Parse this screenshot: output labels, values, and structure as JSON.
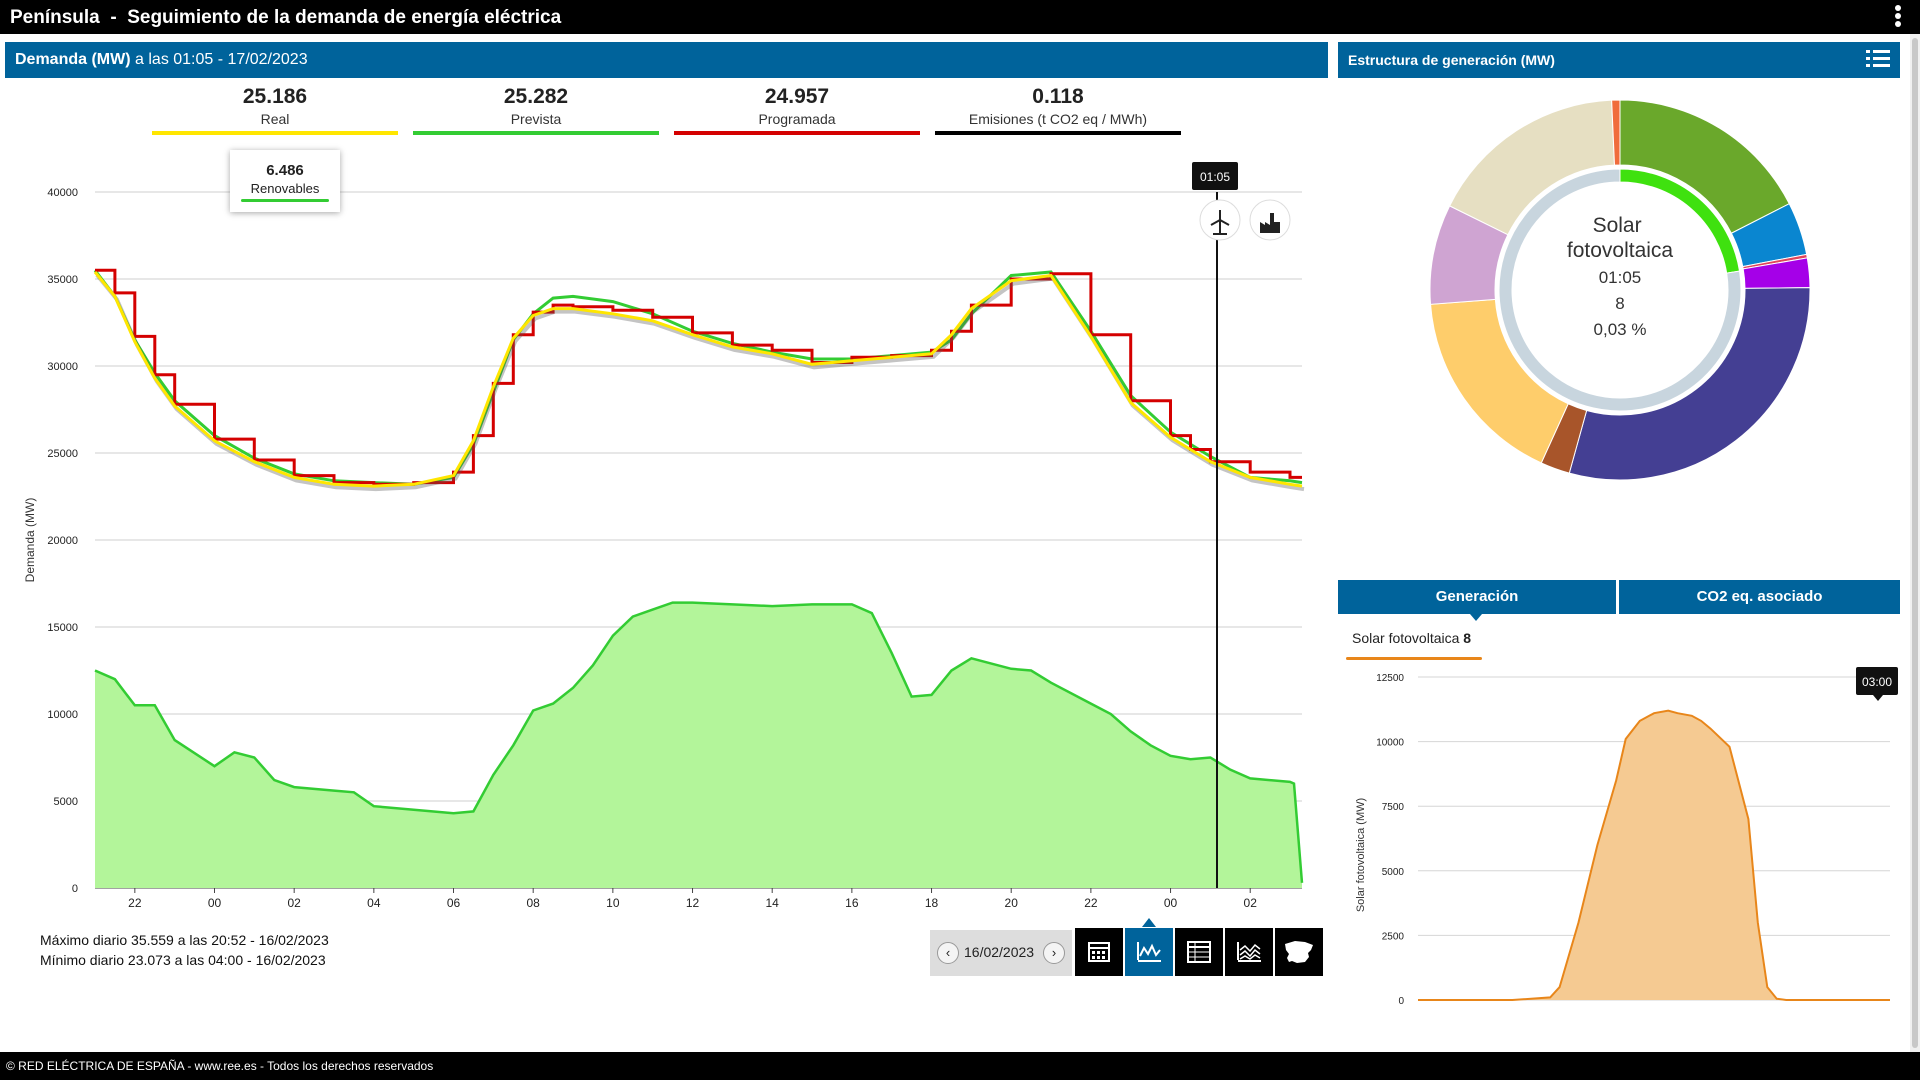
{
  "header": {
    "region": "Península",
    "separator": "-",
    "title": "Seguimiento de la demanda de energía eléctrica"
  },
  "demand_panel": {
    "title_bold": "Demanda (MW)",
    "title_rest": "a las 01:05 - 17/02/2023",
    "kpis": [
      {
        "value": "25.186",
        "label": "Real",
        "color": "#ffe600"
      },
      {
        "value": "25.282",
        "label": "Prevista",
        "color": "#33cc33"
      },
      {
        "value": "24.957",
        "label": "Programada",
        "color": "#d40000"
      },
      {
        "value": "0.118",
        "label": "Emisiones (t CO2 eq / MWh)",
        "color": "#000000"
      }
    ],
    "renewables": {
      "value": "6.486",
      "label": "Renovables",
      "color": "#33cc33"
    },
    "cursor_time": "01:05",
    "icons": [
      "wind-turbine-icon",
      "factory-icon"
    ],
    "stats": {
      "max": "Máximo diario 35.559 a las 20:52 - 16/02/2023",
      "min": "Mínimo diario 23.073 a las 04:00 - 16/02/2023"
    },
    "date": "16/02/2023",
    "prev_label": "‹",
    "next_label": "›",
    "view_buttons": [
      "calendar-icon",
      "line-chart-icon",
      "table-icon",
      "area-chart-icon",
      "spain-map-icon"
    ],
    "active_view": "line-chart-icon"
  },
  "chart_data": [
    {
      "type": "line",
      "ylabel": "Demanda (MW)",
      "ylim": [
        0,
        40000
      ],
      "y_ticks": [
        "0",
        "5000",
        "10000",
        "15000",
        "20000",
        "25000",
        "30000",
        "35000",
        "40000"
      ],
      "x_ticks": [
        "22",
        "00",
        "02",
        "04",
        "06",
        "08",
        "10",
        "12",
        "14",
        "16",
        "18",
        "20",
        "22",
        "00",
        "02"
      ],
      "x_tick_hours": [
        22,
        24,
        26,
        28,
        30,
        32,
        34,
        36,
        38,
        40,
        42,
        44,
        46,
        48,
        50
      ],
      "xlim_hours": [
        21,
        51.3
      ],
      "grid": true,
      "series": [
        {
          "name": "Prevista",
          "color": "#33cc33",
          "x": [
            21,
            21.5,
            22,
            22.5,
            23,
            24,
            25,
            26,
            27,
            28,
            29,
            30,
            30.5,
            31,
            31.5,
            32,
            32.5,
            33,
            34,
            35,
            36,
            37,
            38,
            39,
            40,
            41,
            42,
            42.5,
            43,
            44,
            45,
            46,
            47,
            48,
            48.5,
            49,
            50,
            51,
            51.3
          ],
          "y": [
            35500,
            34000,
            31500,
            29600,
            28000,
            26000,
            24700,
            23800,
            23400,
            23300,
            23200,
            23600,
            25500,
            28500,
            31500,
            33000,
            33900,
            34000,
            33700,
            33000,
            32000,
            31300,
            30800,
            30400,
            30400,
            30600,
            30800,
            31500,
            33000,
            35200,
            35400,
            32000,
            28300,
            26200,
            25500,
            24800,
            23600,
            23400,
            23300
          ]
        },
        {
          "name": "Programada",
          "color": "#d40000",
          "x": [
            21,
            21.5,
            22,
            22.5,
            23,
            24,
            25,
            26,
            27,
            28,
            29,
            30,
            30.5,
            31,
            31.5,
            32,
            32.5,
            33,
            34,
            35,
            36,
            37,
            38,
            39,
            40,
            41,
            42,
            42.5,
            43,
            44,
            45,
            46,
            47,
            48,
            48.5,
            49,
            50,
            51,
            51.3
          ],
          "y": [
            35500,
            34200,
            31700,
            29500,
            27800,
            25800,
            24600,
            23700,
            23300,
            23200,
            23300,
            23900,
            26000,
            29000,
            31800,
            33100,
            33500,
            33400,
            33200,
            32800,
            31900,
            31200,
            30900,
            30200,
            30500,
            30600,
            30900,
            32000,
            33500,
            35000,
            35300,
            31800,
            28000,
            26000,
            25200,
            24500,
            23900,
            23600,
            23600
          ]
        },
        {
          "name": "Real",
          "color": "#ffe600",
          "x": [
            21,
            21.5,
            22,
            22.5,
            23,
            24,
            25,
            26,
            27,
            28,
            29,
            30,
            30.5,
            31,
            31.5,
            32,
            32.5,
            33,
            34,
            35,
            36,
            37,
            38,
            39,
            40,
            41,
            42,
            42.5,
            43,
            44,
            45,
            46,
            47,
            48,
            48.5,
            49,
            50,
            51,
            51.3
          ],
          "y": [
            35400,
            34000,
            31400,
            29300,
            27700,
            25700,
            24500,
            23600,
            23200,
            23100,
            23200,
            23700,
            25700,
            28800,
            31600,
            32900,
            33300,
            33300,
            33000,
            32600,
            31800,
            31100,
            30700,
            30100,
            30300,
            30500,
            30700,
            31800,
            33300,
            34900,
            35200,
            31700,
            27900,
            25900,
            25200,
            24500,
            23600,
            23200,
            23100
          ]
        },
        {
          "name": "Renovables",
          "color": "#33cc33",
          "fill": "#b3f59a",
          "x": [
            21,
            21.5,
            22,
            22.5,
            23,
            24,
            24.5,
            25,
            25.5,
            26,
            27,
            27.5,
            28,
            29,
            30,
            30.5,
            31,
            31.5,
            32,
            32.5,
            33,
            33.5,
            34,
            34.5,
            35,
            35.5,
            36,
            37,
            38,
            39,
            40,
            40.5,
            41,
            41.5,
            42,
            42.5,
            43,
            44,
            44.5,
            45,
            46,
            46.5,
            47,
            47.5,
            48,
            48.5,
            49,
            49.5,
            50,
            51,
            51.1,
            51.3
          ],
          "y": [
            12500,
            12000,
            10500,
            10500,
            8500,
            7000,
            7800,
            7500,
            6200,
            5800,
            5600,
            5500,
            4700,
            4500,
            4300,
            4400,
            6500,
            8200,
            10200,
            10600,
            11500,
            12800,
            14500,
            15600,
            16000,
            16400,
            16400,
            16300,
            16200,
            16300,
            16300,
            15800,
            13500,
            11000,
            11100,
            12500,
            13200,
            12600,
            12500,
            11800,
            10600,
            10000,
            9000,
            8200,
            7600,
            7400,
            7500,
            6800,
            6300,
            6100,
            6000,
            300
          ]
        }
      ]
    },
    {
      "type": "pie",
      "title": "Estructura de generación (MW)",
      "center": {
        "name": "Solar fotovoltaica",
        "time": "01:05",
        "value": "8",
        "pct": "0,03 %"
      },
      "slices": [
        {
          "value": 17.5,
          "color": "#6aa82b"
        },
        {
          "value": 4.5,
          "color": "#0a86d0"
        },
        {
          "value": 0.3,
          "color": "#e0455a"
        },
        {
          "value": 2.5,
          "color": "#a500e8"
        },
        {
          "value": 29.5,
          "color": "#443f93"
        },
        {
          "value": 2.5,
          "color": "#a8552a"
        },
        {
          "value": 17.0,
          "color": "#fecd6b"
        },
        {
          "value": 8.5,
          "color": "#cfa4d2"
        },
        {
          "value": 17.0,
          "color": "#e6dfc2"
        },
        {
          "value": 0.7,
          "color": "#f06c3c"
        }
      ],
      "inner_slices": [
        {
          "value": 22.5,
          "color": "#3fe10f"
        },
        {
          "value": 77.5,
          "color": "#c8d5de"
        }
      ]
    },
    {
      "type": "area",
      "ylabel": "Solar fotovoltaica (MW)",
      "ylim": [
        0,
        12500
      ],
      "y_ticks": [
        "0",
        "2500",
        "5000",
        "7500",
        "10000",
        "12500"
      ],
      "cursor_time": "03:00",
      "color": "#e8861a",
      "fill": "#f5ca92",
      "x": [
        0,
        0.2,
        0.28,
        0.3,
        0.34,
        0.38,
        0.42,
        0.44,
        0.47,
        0.5,
        0.53,
        0.55,
        0.58,
        0.6,
        0.62,
        0.66,
        0.7,
        0.72,
        0.74,
        0.76,
        0.78,
        0.8,
        1
      ],
      "y": [
        0,
        0,
        100,
        500,
        3000,
        6000,
        8500,
        10100,
        10800,
        11100,
        11200,
        11100,
        11000,
        10800,
        10500,
        9800,
        7000,
        3000,
        500,
        50,
        0,
        0,
        0
      ]
    }
  ],
  "generation_panel": {
    "title": "Estructura de generación (MW)",
    "tabs": [
      "Generación",
      "CO2 eq. asociado"
    ],
    "series_label": "Solar fotovoltaica",
    "series_value": "8"
  },
  "footer": {
    "text": "© RED ELÉCTRICA DE ESPAÑA - www.ree.es - Todos los derechos reservados"
  }
}
